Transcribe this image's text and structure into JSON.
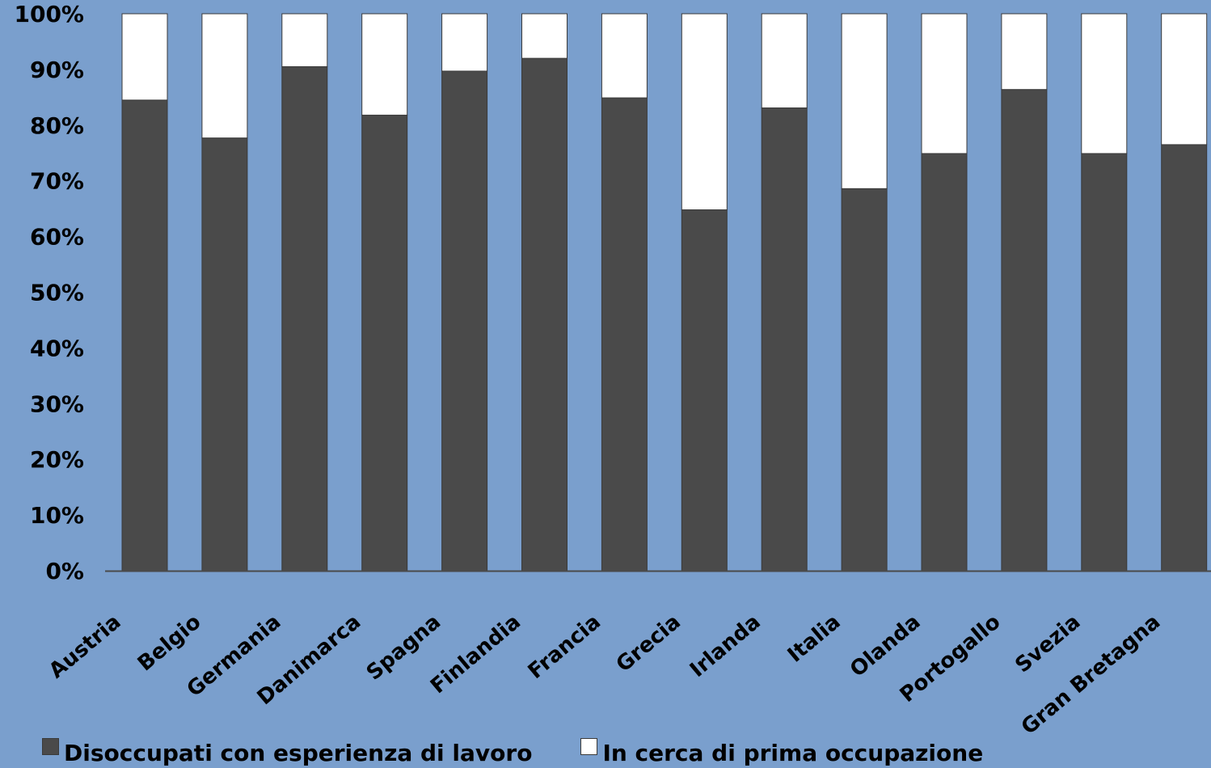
{
  "chart_data": {
    "type": "bar",
    "stacked": true,
    "normalized": true,
    "categories": [
      "Austria",
      "Belgio",
      "Germania",
      "Danimarca",
      "Spagna",
      "Finlandia",
      "Francia",
      "Grecia",
      "Irlanda",
      "Italia",
      "Olanda",
      "Portogallo",
      "Svezia",
      "Gran Bretagna"
    ],
    "series": [
      {
        "name": "Disoccupati con esperienza di lavoro",
        "color": "#4a4a4a",
        "values": [
          84.5,
          77.7,
          90.5,
          81.8,
          89.7,
          92.0,
          84.9,
          64.8,
          83.1,
          68.6,
          74.9,
          86.4,
          74.9,
          76.5
        ]
      },
      {
        "name": "In cerca di prima occupazione",
        "color": "#ffffff",
        "values": [
          15.5,
          22.3,
          9.5,
          18.2,
          10.3,
          8.0,
          15.1,
          35.2,
          16.9,
          31.4,
          25.1,
          13.6,
          25.1,
          23.5
        ]
      }
    ],
    "y_ticks": [
      "0%",
      "10%",
      "20%",
      "30%",
      "40%",
      "50%",
      "60%",
      "70%",
      "80%",
      "90%",
      "100%"
    ],
    "ylim": [
      0,
      100
    ],
    "grid": false,
    "legend_position": "bottom",
    "title": "",
    "xlabel": "",
    "ylabel": ""
  },
  "colors": {
    "background": "#7a9fcd",
    "axis": "#4a4a4a"
  }
}
